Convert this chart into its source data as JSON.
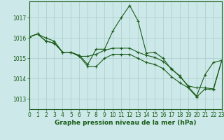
{
  "background_color": "#cce8e8",
  "grid_color": "#aacccc",
  "line_color": "#1a5c1a",
  "xlabel": "Graphe pression niveau de la mer (hPa)",
  "xlabel_fontsize": 6.5,
  "tick_fontsize": 5.5,
  "xlim": [
    0,
    23
  ],
  "ylim": [
    1012.5,
    1017.8
  ],
  "yticks": [
    1013,
    1014,
    1015,
    1016,
    1017
  ],
  "xticks": [
    0,
    1,
    2,
    3,
    4,
    5,
    6,
    7,
    8,
    9,
    10,
    11,
    12,
    13,
    14,
    15,
    16,
    17,
    18,
    19,
    20,
    21,
    22,
    23
  ],
  "series": [
    {
      "x": [
        0,
        1,
        2,
        3,
        4,
        5,
        6,
        7,
        8,
        9,
        10,
        11,
        12,
        13,
        14,
        15,
        16,
        17,
        18,
        19,
        20,
        21,
        22,
        23
      ],
      "y": [
        1016.05,
        1016.2,
        1016.0,
        1015.85,
        1015.3,
        1015.3,
        1015.15,
        1014.7,
        1015.45,
        1015.45,
        1016.35,
        1017.0,
        1017.6,
        1016.85,
        1015.25,
        1015.3,
        1015.0,
        1014.45,
        1014.15,
        1013.6,
        1013.15,
        1014.2,
        1014.8,
        1014.9
      ]
    },
    {
      "x": [
        0,
        1,
        2,
        3,
        4,
        5,
        6,
        7,
        8,
        9,
        10,
        11,
        12,
        13,
        14,
        15,
        16,
        17,
        18,
        19,
        20,
        21,
        22,
        23
      ],
      "y": [
        1016.05,
        1016.2,
        1015.85,
        1015.75,
        1015.3,
        1015.3,
        1015.1,
        1015.1,
        1015.2,
        1015.4,
        1015.5,
        1015.5,
        1015.5,
        1015.3,
        1015.15,
        1015.05,
        1014.85,
        1014.5,
        1014.1,
        1013.65,
        1013.55,
        1013.55,
        1013.5,
        1014.9
      ]
    },
    {
      "x": [
        0,
        1,
        2,
        3,
        4,
        5,
        6,
        7,
        8,
        9,
        10,
        11,
        12,
        13,
        14,
        15,
        16,
        17,
        18,
        19,
        20,
        21,
        22,
        23
      ],
      "y": [
        1016.05,
        1016.2,
        1015.85,
        1015.75,
        1015.3,
        1015.3,
        1015.1,
        1014.6,
        1014.6,
        1015.0,
        1015.2,
        1015.2,
        1015.2,
        1015.0,
        1014.8,
        1014.7,
        1014.5,
        1014.1,
        1013.8,
        1013.55,
        1013.1,
        1013.5,
        1013.45,
        1014.9
      ]
    }
  ]
}
